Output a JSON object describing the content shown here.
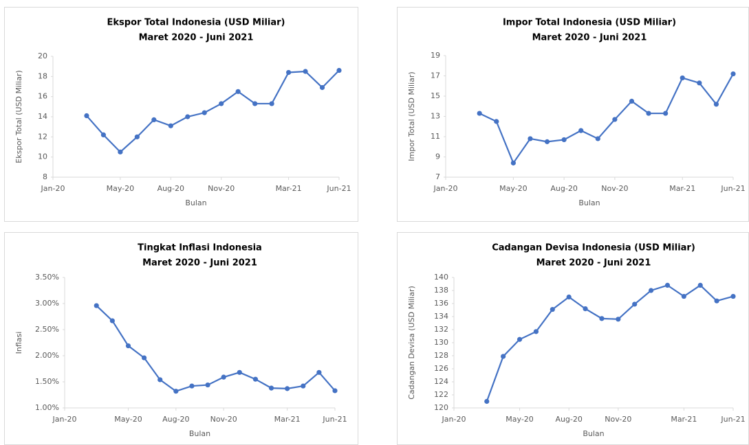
{
  "chart_data": [
    {
      "type": "line",
      "title": "Ekspor Total Indonesia (USD Miliar)",
      "subtitle": "Maret 2020 - Juni 2021",
      "x_label": "Bulan",
      "y_label": "Ekspor Total (USD Miliar)",
      "x": [
        "2020-03",
        "2020-04",
        "2020-05",
        "2020-06",
        "2020-07",
        "2020-08",
        "2020-09",
        "2020-10",
        "2020-11",
        "2020-12",
        "2021-01",
        "2021-02",
        "2021-03",
        "2021-04",
        "2021-05",
        "2021-06"
      ],
      "series": [
        {
          "color": "#4472c4",
          "values": [
            14.1,
            12.2,
            10.5,
            12.0,
            13.7,
            13.1,
            14.0,
            14.4,
            15.3,
            16.5,
            15.3,
            15.3,
            18.4,
            18.5,
            16.9,
            18.6
          ]
        }
      ],
      "xlim": [
        "2020-01",
        "2021-06"
      ],
      "xticks": [
        {
          "value": "2020-01",
          "label": "Jan-20"
        },
        {
          "value": "2020-05",
          "label": "May-20"
        },
        {
          "value": "2020-08",
          "label": "Aug-20"
        },
        {
          "value": "2020-11",
          "label": "Nov-20"
        },
        {
          "value": "2021-03",
          "label": "Mar-21"
        },
        {
          "value": "2021-06",
          "label": "Jun-21"
        }
      ],
      "ylim": [
        8,
        20
      ],
      "yticks": [
        8,
        10,
        12,
        14,
        16,
        18,
        20
      ],
      "grid": false
    },
    {
      "type": "line",
      "title": "Impor Total Indonesia (USD Miliar)",
      "subtitle": "Maret 2020 - Juni 2021",
      "x_label": "Bulan",
      "y_label": "Impor Total (USD Miliar)",
      "x": [
        "2020-03",
        "2020-04",
        "2020-05",
        "2020-06",
        "2020-07",
        "2020-08",
        "2020-09",
        "2020-10",
        "2020-11",
        "2020-12",
        "2021-01",
        "2021-02",
        "2021-03",
        "2021-04",
        "2021-05",
        "2021-06"
      ],
      "series": [
        {
          "color": "#4472c4",
          "values": [
            13.3,
            12.5,
            8.4,
            10.8,
            10.5,
            10.7,
            11.6,
            10.8,
            12.7,
            14.5,
            13.3,
            13.3,
            16.8,
            16.3,
            14.2,
            17.2
          ]
        }
      ],
      "xlim": [
        "2020-01",
        "2021-06"
      ],
      "xticks": [
        {
          "value": "2020-01",
          "label": "Jan-20"
        },
        {
          "value": "2020-05",
          "label": "May-20"
        },
        {
          "value": "2020-08",
          "label": "Aug-20"
        },
        {
          "value": "2020-11",
          "label": "Nov-20"
        },
        {
          "value": "2021-03",
          "label": "Mar-21"
        },
        {
          "value": "2021-06",
          "label": "Jun-21"
        }
      ],
      "ylim": [
        7,
        19
      ],
      "yticks": [
        7,
        9,
        11,
        13,
        15,
        17,
        19
      ],
      "grid": false
    },
    {
      "type": "line",
      "title": "Tingkat Inflasi Indonesia",
      "subtitle": "Maret 2020 - Juni 2021",
      "x_label": "Bulan",
      "y_label": "Inflasi",
      "x": [
        "2020-03",
        "2020-04",
        "2020-05",
        "2020-06",
        "2020-07",
        "2020-08",
        "2020-09",
        "2020-10",
        "2020-11",
        "2020-12",
        "2021-01",
        "2021-02",
        "2021-03",
        "2021-04",
        "2021-05",
        "2021-06"
      ],
      "series": [
        {
          "color": "#4472c4",
          "values": [
            2.96,
            2.67,
            2.19,
            1.96,
            1.54,
            1.32,
            1.42,
            1.44,
            1.59,
            1.68,
            1.55,
            1.38,
            1.37,
            1.42,
            1.68,
            1.33
          ]
        }
      ],
      "xlim": [
        "2020-01",
        "2021-06"
      ],
      "xticks": [
        {
          "value": "2020-01",
          "label": "Jan-20"
        },
        {
          "value": "2020-05",
          "label": "May-20"
        },
        {
          "value": "2020-08",
          "label": "Aug-20"
        },
        {
          "value": "2020-11",
          "label": "Nov-20"
        },
        {
          "value": "2021-03",
          "label": "Mar-21"
        },
        {
          "value": "2021-06",
          "label": "Jun-21"
        }
      ],
      "ylim": [
        1,
        3.5
      ],
      "yticks": [
        {
          "value": 1,
          "label": "1.00%"
        },
        {
          "value": 1.5,
          "label": "1.50%"
        },
        {
          "value": 2,
          "label": "2.00%"
        },
        {
          "value": 2.5,
          "label": "2.50%"
        },
        {
          "value": 3,
          "label": "3.00%"
        },
        {
          "value": 3.5,
          "label": "3.50%"
        }
      ],
      "grid": false
    },
    {
      "type": "line",
      "title": "Cadangan Devisa Indonesia (USD Miliar)",
      "subtitle": "Maret 2020 - Juni 2021",
      "x_label": "Bulan",
      "y_label": "Cadangan Devisa (USD Miliar)",
      "x": [
        "2020-03",
        "2020-04",
        "2020-05",
        "2020-06",
        "2020-07",
        "2020-08",
        "2020-09",
        "2020-10",
        "2020-11",
        "2020-12",
        "2021-01",
        "2021-02",
        "2021-03",
        "2021-04",
        "2021-05",
        "2021-06"
      ],
      "series": [
        {
          "color": "#4472c4",
          "values": [
            121.0,
            127.9,
            130.5,
            131.7,
            135.1,
            137.0,
            135.2,
            133.7,
            133.6,
            135.9,
            138.0,
            138.8,
            137.1,
            138.8,
            136.4,
            137.1
          ]
        }
      ],
      "xlim": [
        "2020-01",
        "2021-06"
      ],
      "xticks": [
        {
          "value": "2020-01",
          "label": "Jan-20"
        },
        {
          "value": "2020-05",
          "label": "May-20"
        },
        {
          "value": "2020-08",
          "label": "Aug-20"
        },
        {
          "value": "2020-11",
          "label": "Nov-20"
        },
        {
          "value": "2021-03",
          "label": "Mar-21"
        },
        {
          "value": "2021-06",
          "label": "Jun-21"
        }
      ],
      "ylim": [
        120,
        140
      ],
      "yticks": [
        120,
        122,
        124,
        126,
        128,
        130,
        132,
        134,
        136,
        138,
        140
      ],
      "grid": false
    }
  ]
}
